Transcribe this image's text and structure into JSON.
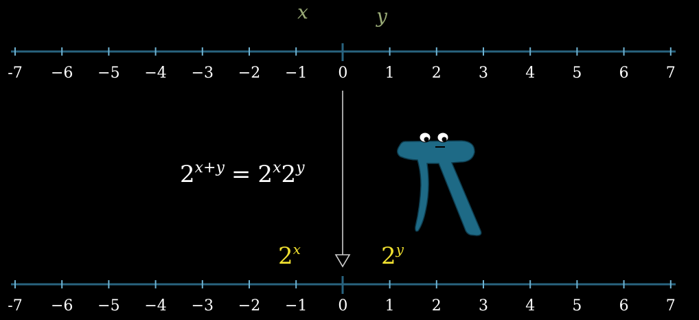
{
  "colors": {
    "background": "#000000",
    "axis": "#29637f",
    "tick": "#6fb3d2",
    "label": "#ffffff",
    "input_var": "#9aab77",
    "output_var": "#f0e030",
    "arrow": "#d0d0d0",
    "pi_body": "#1e6a86"
  },
  "top_line": {
    "ticks": [
      "-7",
      "−6",
      "−5",
      "−4",
      "−3",
      "−2",
      "−1",
      "0",
      "1",
      "2",
      "3",
      "4",
      "5",
      "6",
      "7"
    ],
    "var_x": "x",
    "var_y": "y"
  },
  "bottom_line": {
    "ticks": [
      "-7",
      "−6",
      "−5",
      "−4",
      "−3",
      "−2",
      "−1",
      "0",
      "1",
      "2",
      "3",
      "4",
      "5",
      "6",
      "7"
    ],
    "label_2x": {
      "base": "2",
      "exp": "x"
    },
    "label_2y": {
      "base": "2",
      "exp": "y"
    }
  },
  "formula": {
    "lhs_base": "2",
    "lhs_exp": "x+y",
    "equals": "=",
    "rhs1_base": "2",
    "rhs1_exp": "x",
    "rhs2_base": "2",
    "rhs2_exp": "y"
  },
  "mascot": {
    "icon": "pi-creature-icon"
  }
}
